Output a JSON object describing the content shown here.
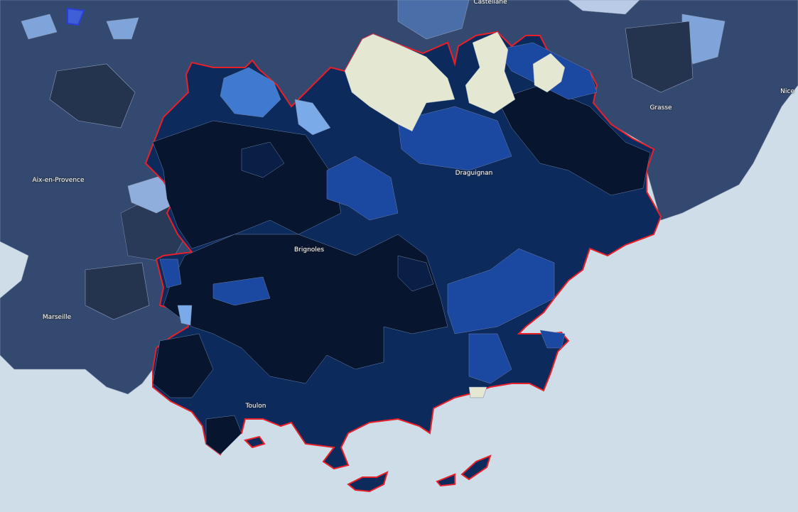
{
  "map": {
    "labels": {
      "castellane": "Castellane",
      "nice": "Nice",
      "grasse": "Grasse",
      "aix": "Aix-en-Provence",
      "marseille": "Marseille",
      "brignoles": "Brignoles",
      "draguignan": "Draguignan",
      "toulon": "Toulon"
    },
    "colors": {
      "sea": "#cfdde9",
      "land_outside": "#34496f",
      "region_base": "#0c2a5c",
      "darkest": "#08152e",
      "medium_blue": "#1d4fa0",
      "light_blue": "#6fa3e6",
      "cream": "#e4e7d2",
      "region_border": "#e8202a"
    }
  }
}
